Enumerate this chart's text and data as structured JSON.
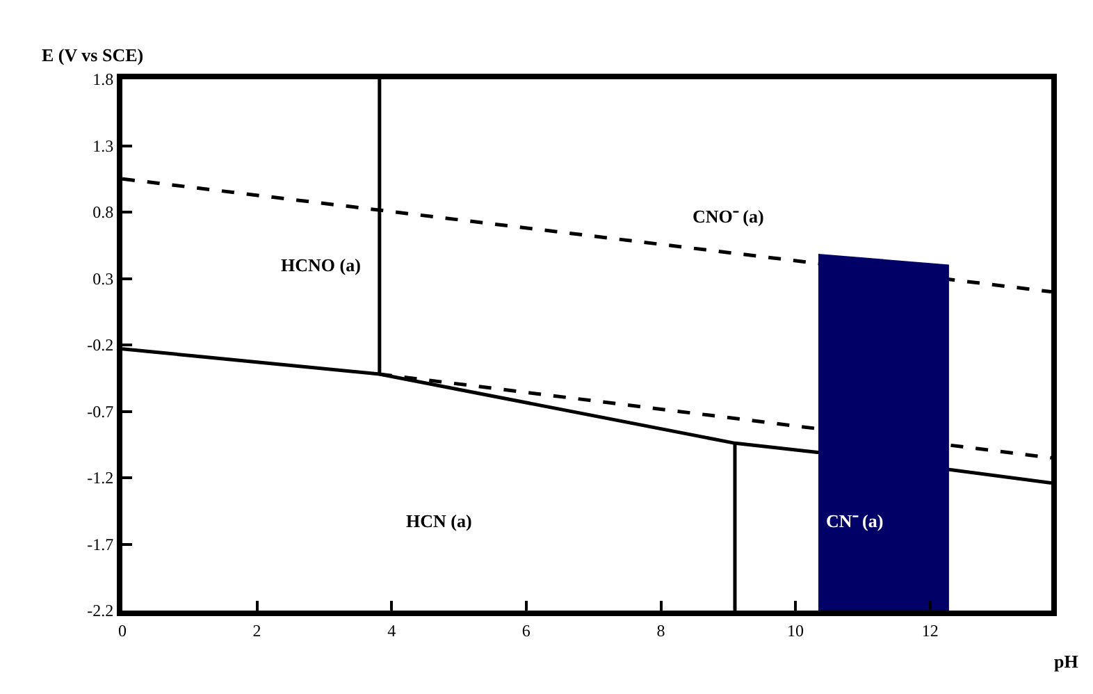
{
  "chart_data": {
    "type": "line",
    "ylabel": "E (V vs SCE)",
    "xlabel": "pH",
    "xlim": [
      0,
      13.8
    ],
    "xticks": [
      0,
      2,
      4,
      6,
      8,
      10,
      12
    ],
    "ylim": [
      -2.2,
      1.8
    ],
    "yticks": [
      1.8,
      1.3,
      0.8,
      0.3,
      -0.2,
      -0.7,
      -1.2,
      -1.7,
      -2.2
    ],
    "marker": "none",
    "series": [
      {
        "color": "#000000",
        "line_style": "dashed",
        "x": [
          0,
          13.8
        ],
        "values": [
          1.05,
          0.2
        ]
      },
      {
        "color": "#000000",
        "line_style": "solid",
        "x": [
          0,
          3.82,
          9.1,
          10.35,
          13.8
        ],
        "values": [
          -0.23,
          -0.42,
          -0.94,
          -1.01,
          -1.24
        ]
      },
      {
        "color": "#000000",
        "line_style": "dashed",
        "x": [
          3.82,
          13.8
        ],
        "values": [
          -0.42,
          -1.05
        ]
      },
      {
        "color": "#000000",
        "line_style": "solid",
        "x": [
          3.82,
          3.82
        ],
        "values": [
          -0.42,
          1.8
        ]
      },
      {
        "color": "#000000",
        "line_style": "solid",
        "x": [
          9.1,
          9.1
        ],
        "values": [
          -0.94,
          -2.2
        ]
      },
      {
        "type": "area",
        "color": "#000066",
        "x": [
          10.35,
          10.35,
          12.27,
          12.27
        ],
        "values": [
          -2.2,
          0.48,
          0.4,
          -2.2
        ]
      }
    ],
    "annotations": [
      "HCNO (a)",
      "CNO⁻ (a)",
      "HCN (a)",
      "CN⁻ (a)"
    ]
  }
}
